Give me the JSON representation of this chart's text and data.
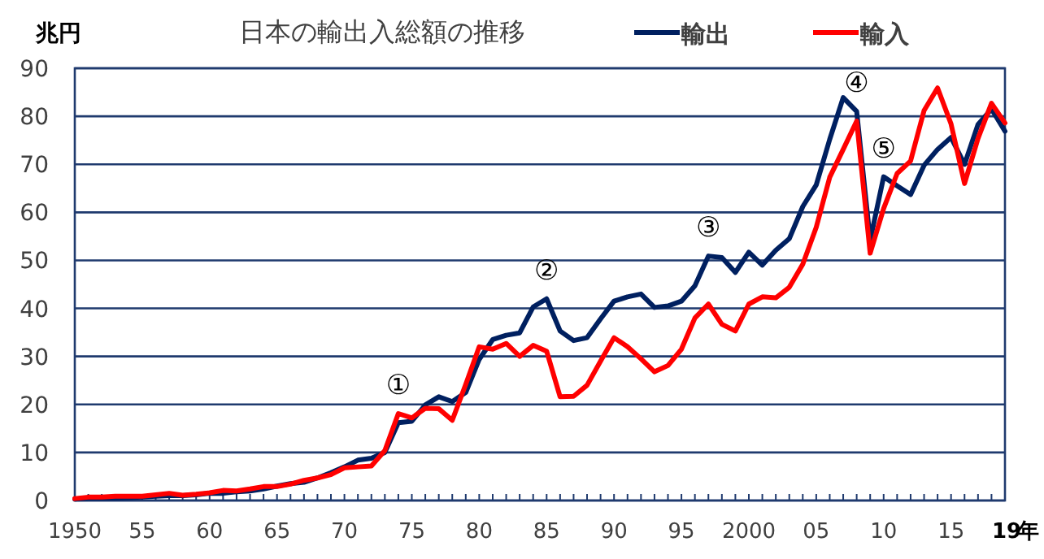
{
  "chart_data": {
    "type": "line",
    "title": "日本の輸出入総額の推移",
    "ylabel": "兆円",
    "x": [
      1950,
      1951,
      1952,
      1953,
      1954,
      1955,
      1956,
      1957,
      1958,
      1959,
      1960,
      1961,
      1962,
      1963,
      1964,
      1965,
      1966,
      1967,
      1968,
      1969,
      1970,
      1971,
      1972,
      1973,
      1974,
      1975,
      1976,
      1977,
      1978,
      1979,
      1980,
      1981,
      1982,
      1983,
      1984,
      1985,
      1986,
      1987,
      1988,
      1989,
      1990,
      1991,
      1992,
      1993,
      1994,
      1995,
      1996,
      1997,
      1998,
      1999,
      2000,
      2001,
      2002,
      2003,
      2004,
      2005,
      2006,
      2007,
      2008,
      2009,
      2010,
      2011,
      2012,
      2013,
      2014,
      2015,
      2016,
      2017,
      2018,
      2019
    ],
    "series": [
      {
        "name": "輸出",
        "color": "#002060",
        "values": [
          0.3,
          0.5,
          0.5,
          0.5,
          0.6,
          0.7,
          0.9,
          1.0,
          1.0,
          1.2,
          1.5,
          1.5,
          1.8,
          2.0,
          2.4,
          3.0,
          3.5,
          3.8,
          4.7,
          5.8,
          7.0,
          8.4,
          8.8,
          10.0,
          16.2,
          16.5,
          19.9,
          21.6,
          20.6,
          22.5,
          29.4,
          33.5,
          34.4,
          34.9,
          40.3,
          42.0,
          35.3,
          33.3,
          33.9,
          37.8,
          41.5,
          42.4,
          43.0,
          40.2,
          40.5,
          41.5,
          44.7,
          50.9,
          50.6,
          47.5,
          51.7,
          49.0,
          52.1,
          54.5,
          61.2,
          65.7,
          75.2,
          83.9,
          81.0,
          54.2,
          67.4,
          65.5,
          63.7,
          69.8,
          73.1,
          75.6,
          70.0,
          78.3,
          81.5,
          76.9
        ]
      },
      {
        "name": "輸入",
        "color": "#ff0000",
        "values": [
          0.4,
          0.7,
          0.7,
          0.9,
          0.9,
          0.9,
          1.2,
          1.5,
          1.1,
          1.3,
          1.6,
          2.1,
          2.0,
          2.4,
          2.9,
          2.9,
          3.4,
          4.2,
          4.7,
          5.4,
          6.8,
          7.0,
          7.2,
          10.4,
          18.1,
          17.2,
          19.2,
          19.1,
          16.7,
          24.2,
          32.0,
          31.5,
          32.7,
          30.0,
          32.3,
          31.1,
          21.6,
          21.7,
          24.0,
          29.0,
          33.9,
          32.0,
          29.5,
          26.8,
          28.1,
          31.5,
          38.0,
          40.9,
          36.7,
          35.3,
          40.9,
          42.4,
          42.2,
          44.4,
          49.2,
          56.9,
          67.3,
          73.1,
          79.0,
          51.5,
          60.8,
          68.1,
          70.7,
          81.2,
          85.9,
          78.4,
          66.0,
          75.4,
          82.7,
          78.6
        ]
      }
    ],
    "xlim": [
      1950,
      2019
    ],
    "xticks": [
      {
        "value": 1950,
        "label": "1950"
      },
      {
        "value": 1951,
        "label": null
      },
      {
        "value": 1952,
        "label": null
      },
      {
        "value": 1953,
        "label": null
      },
      {
        "value": 1954,
        "label": null
      },
      {
        "value": 1955,
        "label": "55"
      },
      {
        "value": 1956,
        "label": null
      },
      {
        "value": 1957,
        "label": null
      },
      {
        "value": 1958,
        "label": null
      },
      {
        "value": 1959,
        "label": null
      },
      {
        "value": 1960,
        "label": "60"
      },
      {
        "value": 1961,
        "label": null
      },
      {
        "value": 1962,
        "label": null
      },
      {
        "value": 1963,
        "label": null
      },
      {
        "value": 1964,
        "label": null
      },
      {
        "value": 1965,
        "label": "65"
      },
      {
        "value": 1966,
        "label": null
      },
      {
        "value": 1967,
        "label": null
      },
      {
        "value": 1968,
        "label": null
      },
      {
        "value": 1969,
        "label": null
      },
      {
        "value": 1970,
        "label": "70"
      },
      {
        "value": 1971,
        "label": null
      },
      {
        "value": 1972,
        "label": null
      },
      {
        "value": 1973,
        "label": null
      },
      {
        "value": 1974,
        "label": null
      },
      {
        "value": 1975,
        "label": "75"
      },
      {
        "value": 1976,
        "label": null
      },
      {
        "value": 1977,
        "label": null
      },
      {
        "value": 1978,
        "label": null
      },
      {
        "value": 1979,
        "label": null
      },
      {
        "value": 1980,
        "label": "80"
      },
      {
        "value": 1981,
        "label": null
      },
      {
        "value": 1982,
        "label": null
      },
      {
        "value": 1983,
        "label": null
      },
      {
        "value": 1984,
        "label": null
      },
      {
        "value": 1985,
        "label": "85"
      },
      {
        "value": 1986,
        "label": null
      },
      {
        "value": 1987,
        "label": null
      },
      {
        "value": 1988,
        "label": null
      },
      {
        "value": 1989,
        "label": null
      },
      {
        "value": 1990,
        "label": "90"
      },
      {
        "value": 1991,
        "label": null
      },
      {
        "value": 1992,
        "label": null
      },
      {
        "value": 1993,
        "label": null
      },
      {
        "value": 1994,
        "label": null
      },
      {
        "value": 1995,
        "label": "95"
      },
      {
        "value": 1996,
        "label": null
      },
      {
        "value": 1997,
        "label": null
      },
      {
        "value": 1998,
        "label": null
      },
      {
        "value": 1999,
        "label": null
      },
      {
        "value": 2000,
        "label": "2000"
      },
      {
        "value": 2001,
        "label": null
      },
      {
        "value": 2002,
        "label": null
      },
      {
        "value": 2003,
        "label": null
      },
      {
        "value": 2004,
        "label": null
      },
      {
        "value": 2005,
        "label": "05"
      },
      {
        "value": 2006,
        "label": null
      },
      {
        "value": 2007,
        "label": null
      },
      {
        "value": 2008,
        "label": null
      },
      {
        "value": 2009,
        "label": null
      },
      {
        "value": 2010,
        "label": "10"
      },
      {
        "value": 2011,
        "label": null
      },
      {
        "value": 2012,
        "label": null
      },
      {
        "value": 2013,
        "label": null
      },
      {
        "value": 2014,
        "label": null
      },
      {
        "value": 2015,
        "label": "15"
      },
      {
        "value": 2016,
        "label": null
      },
      {
        "value": 2017,
        "label": null
      },
      {
        "value": 2018,
        "label": null
      },
      {
        "value": 2019,
        "label": "19"
      }
    ],
    "xlabel": "年",
    "ylim": [
      0,
      90
    ],
    "yticks": [
      0,
      10,
      20,
      30,
      40,
      50,
      60,
      70,
      80,
      90
    ],
    "grid": "y",
    "legend": "top right",
    "marker": "none",
    "line_style": "solid",
    "annotations": [
      {
        "text": "①",
        "x": 1974,
        "y": 18.1
      },
      {
        "text": "②",
        "x": 1985,
        "y": 42.0
      },
      {
        "text": "③",
        "x": 1997,
        "y": 50.9
      },
      {
        "text": "④",
        "x": 2008,
        "y": 81.0
      },
      {
        "text": "⑤",
        "x": 2010,
        "y": 67.4
      }
    ]
  }
}
